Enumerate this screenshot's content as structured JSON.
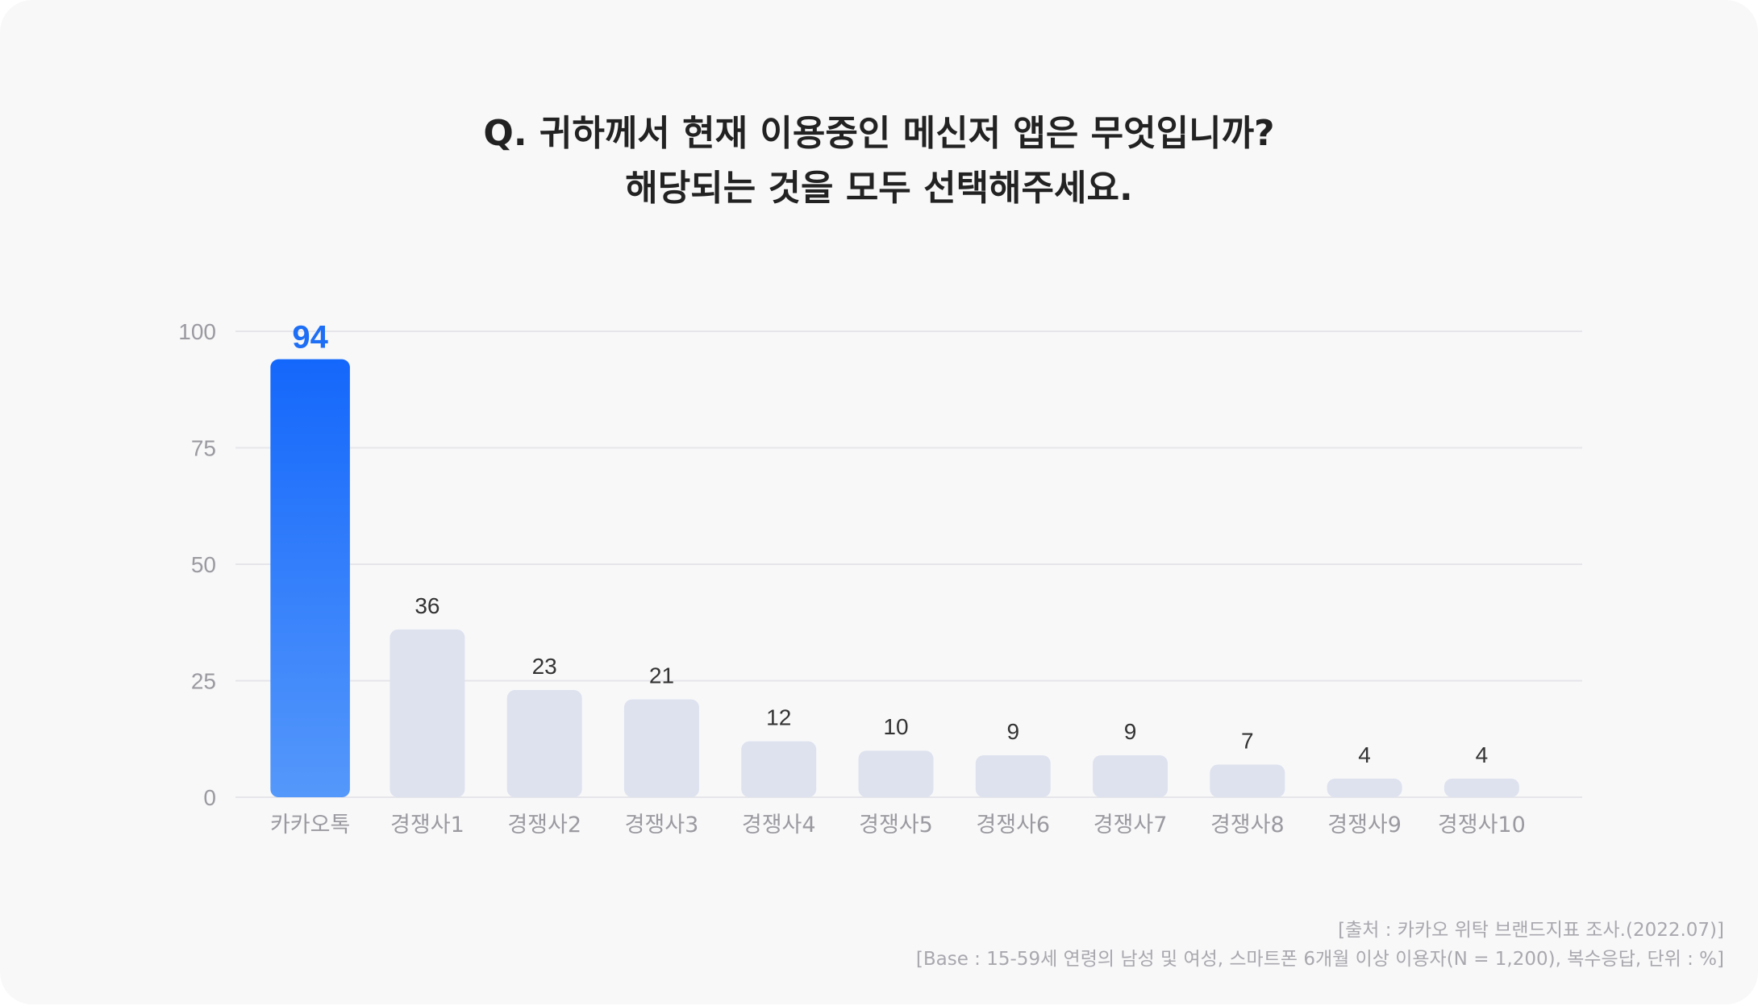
{
  "title_lines": [
    "Q. 귀하께서 현재 이용중인 메신저 앱은 무엇입니까?",
    "해당되는 것을 모두 선택해주세요."
  ],
  "source_lines": [
    "[출처 : 카카오 위탁 브랜드지표 조사.(2022.07)]",
    "[Base : 15-59세 연령의 남성 및 여성, 스마트폰 6개월 이상 이용자(N = 1,200), 복수응답, 단위 : %]"
  ],
  "colors": {
    "highlight_top": "#1467fb",
    "highlight_bottom": "#5598fb",
    "highlight_label": "#1e6ff5",
    "bar": "#dde2ee",
    "grid": "#e6e6ea",
    "tick": "#9a9aa0",
    "value_label": "#333333"
  },
  "chart_data": {
    "type": "bar",
    "categories": [
      "카카오톡",
      "경쟁사1",
      "경쟁사2",
      "경쟁사3",
      "경쟁사4",
      "경쟁사5",
      "경쟁사6",
      "경쟁사7",
      "경쟁사8",
      "경쟁사9",
      "경쟁사10"
    ],
    "values": [
      94,
      36,
      23,
      21,
      12,
      10,
      9,
      9,
      7,
      4,
      4
    ],
    "highlight_index": 0,
    "ylim": [
      0,
      100
    ],
    "yticks": [
      0,
      25,
      50,
      75,
      100
    ],
    "grid": true,
    "legend": "none",
    "data_labels": true
  }
}
